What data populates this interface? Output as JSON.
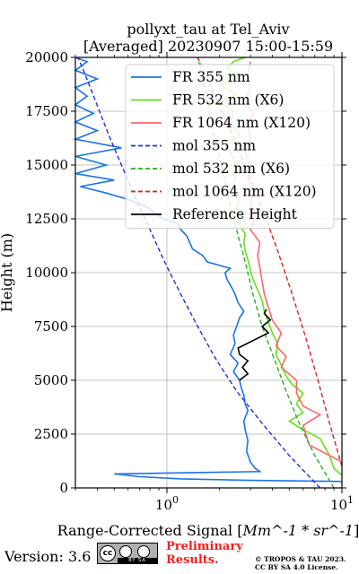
{
  "title_line1": "pollyxt_tau at Tel_Aviv",
  "title_line2": "[Averaged] 20230907 15:00-15:59",
  "footer": {
    "version": "Version: 3.6",
    "cc_badge": "cc-by-sa-badge",
    "cc_text": "BY SA",
    "preliminary_line1": "Preliminary",
    "preliminary_line2": "Results.",
    "copyright_line1": "© TROPOS & TAU 2023.",
    "copyright_line2": "CC BY SA 4.0 License.",
    "preliminary_color": "#ff1a1a"
  },
  "chart_data": {
    "type": "line",
    "title": "pollyxt_tau at Tel_Aviv [Averaged] 20230907 15:00-15:59",
    "xlabel": "Range-Corrected Signal [Mm^-1 * sr^-1]",
    "ylabel": "Height (m)",
    "xscale": "log",
    "xlim": [
      0.3,
      10
    ],
    "ylim": [
      0,
      20000
    ],
    "xticks": [
      {
        "value": 1,
        "label": "10^0"
      },
      {
        "value": 10,
        "label": "10^1"
      }
    ],
    "yticks": [
      0,
      2500,
      5000,
      7500,
      10000,
      12500,
      15000,
      17500,
      20000
    ],
    "ytick_labels": [
      "0",
      "2500",
      "5000",
      "7500",
      "10000",
      "12500",
      "15000",
      "17500",
      "20000"
    ],
    "grid": true,
    "legend_position": "top-right",
    "series": [
      {
        "name": "FR 355 nm",
        "color": "#1a73e8",
        "style": "solid",
        "points": [
          [
            10,
            300
          ],
          [
            3,
            350
          ],
          [
            1.2,
            420
          ],
          [
            0.7,
            520
          ],
          [
            0.5,
            650
          ],
          [
            3.4,
            760
          ],
          [
            3.2,
            900
          ],
          [
            3.0,
            1200
          ],
          [
            2.85,
            1700
          ],
          [
            2.9,
            2200
          ],
          [
            2.8,
            2700
          ],
          [
            2.75,
            3100
          ],
          [
            2.9,
            3600
          ],
          [
            2.8,
            3900
          ],
          [
            2.75,
            4300
          ],
          [
            2.65,
            4700
          ],
          [
            2.6,
            5000
          ],
          [
            2.4,
            5400
          ],
          [
            2.55,
            5800
          ],
          [
            2.3,
            6200
          ],
          [
            2.45,
            6700
          ],
          [
            2.4,
            7100
          ],
          [
            2.5,
            7500
          ],
          [
            2.6,
            7900
          ],
          [
            2.75,
            8200
          ],
          [
            2.55,
            8600
          ],
          [
            2.45,
            9000
          ],
          [
            2.35,
            9300
          ],
          [
            2.2,
            9700
          ],
          [
            2.15,
            10000
          ],
          [
            2.3,
            10200
          ],
          [
            1.7,
            10500
          ],
          [
            1.6,
            10800
          ],
          [
            1.4,
            11100
          ],
          [
            1.35,
            11400
          ],
          [
            1.3,
            11700
          ],
          [
            1.2,
            12000
          ],
          [
            1.15,
            12300
          ],
          [
            0.95,
            12500
          ],
          [
            0.85,
            12800
          ],
          [
            0.75,
            13100
          ],
          [
            0.6,
            13400
          ],
          [
            0.45,
            13700
          ],
          [
            0.32,
            14000
          ],
          [
            0.5,
            14300
          ],
          [
            0.3,
            14600
          ],
          [
            0.45,
            15000
          ],
          [
            0.3,
            15400
          ],
          [
            0.55,
            15800
          ],
          [
            0.3,
            16200
          ],
          [
            0.4,
            16600
          ],
          [
            0.3,
            17000
          ],
          [
            0.38,
            17400
          ],
          [
            0.3,
            17800
          ],
          [
            0.35,
            18200
          ],
          [
            0.3,
            18600
          ],
          [
            0.4,
            19000
          ],
          [
            0.3,
            19400
          ],
          [
            0.35,
            19800
          ],
          [
            0.3,
            20000
          ]
        ]
      },
      {
        "name": "FR 532 nm (X6)",
        "color": "#66e01a",
        "style": "solid",
        "points": [
          [
            10,
            600
          ],
          [
            9.0,
            900
          ],
          [
            8.5,
            1500
          ],
          [
            7.5,
            2300
          ],
          [
            6.0,
            2700
          ],
          [
            5.0,
            3100
          ],
          [
            6.0,
            3500
          ],
          [
            5.5,
            3900
          ],
          [
            6.0,
            4400
          ],
          [
            5.2,
            4800
          ],
          [
            4.8,
            5200
          ],
          [
            4.5,
            5700
          ],
          [
            4.2,
            6200
          ],
          [
            4.3,
            6700
          ],
          [
            4.0,
            7200
          ],
          [
            3.8,
            7700
          ],
          [
            3.6,
            8200
          ],
          [
            3.5,
            8700
          ],
          [
            3.3,
            9200
          ],
          [
            3.1,
            9700
          ],
          [
            3.0,
            10100
          ],
          [
            2.9,
            10600
          ],
          [
            2.8,
            11000
          ],
          [
            2.75,
            11400
          ],
          [
            2.8,
            11800
          ],
          [
            2.6,
            12200
          ],
          [
            2.7,
            12600
          ],
          [
            2.5,
            13000
          ],
          [
            2.6,
            13500
          ],
          [
            2.4,
            14100
          ],
          [
            2.5,
            14700
          ],
          [
            2.4,
            15300
          ],
          [
            2.2,
            15900
          ],
          [
            2.6,
            16400
          ],
          [
            2.3,
            17000
          ],
          [
            2.4,
            17500
          ],
          [
            2.0,
            17900
          ],
          [
            2.5,
            18300
          ],
          [
            2.0,
            18700
          ],
          [
            2.6,
            19100
          ],
          [
            2.2,
            19500
          ],
          [
            2.4,
            19800
          ],
          [
            2.8,
            20000
          ]
        ]
      },
      {
        "name": "FR 1064 nm (X120)",
        "color": "#ff6666",
        "style": "solid",
        "points": [
          [
            10,
            1200
          ],
          [
            6.5,
            2000
          ],
          [
            6.0,
            2900
          ],
          [
            7.5,
            3400
          ],
          [
            6.0,
            3800
          ],
          [
            5.5,
            4400
          ],
          [
            5.5,
            5000
          ],
          [
            4.5,
            5600
          ],
          [
            4.8,
            6100
          ],
          [
            4.2,
            6600
          ],
          [
            4.5,
            7200
          ],
          [
            4.0,
            7800
          ],
          [
            3.8,
            8400
          ],
          [
            3.6,
            9000
          ],
          [
            3.5,
            9600
          ],
          [
            3.4,
            10200
          ],
          [
            3.3,
            10800
          ],
          [
            3.4,
            11400
          ],
          [
            3.0,
            12000
          ],
          [
            3.2,
            12600
          ],
          [
            3.0,
            13200
          ],
          [
            3.1,
            13800
          ],
          [
            2.9,
            14400
          ],
          [
            3.0,
            15000
          ],
          [
            2.8,
            15600
          ],
          [
            3.0,
            16200
          ],
          [
            2.9,
            16800
          ],
          [
            3.1,
            17400
          ],
          [
            2.8,
            18000
          ],
          [
            3.0,
            18600
          ],
          [
            2.9,
            19200
          ],
          [
            3.0,
            19800
          ]
        ]
      },
      {
        "name": "mol 355 nm",
        "color": "#1f2ee0",
        "style": "dashed",
        "points": [
          [
            7.5,
            0
          ],
          [
            5.0,
            1500
          ],
          [
            3.5,
            3000
          ],
          [
            2.5,
            4500
          ],
          [
            1.9,
            6000
          ],
          [
            1.5,
            7500
          ],
          [
            1.2,
            9000
          ],
          [
            0.97,
            10500
          ],
          [
            0.8,
            12000
          ],
          [
            0.66,
            13500
          ],
          [
            0.55,
            15000
          ],
          [
            0.46,
            16500
          ],
          [
            0.39,
            18000
          ],
          [
            0.33,
            19500
          ],
          [
            0.31,
            20000
          ]
        ]
      },
      {
        "name": "mol 532 nm (X6)",
        "color": "#22b022",
        "style": "dashed",
        "points": [
          [
            9.0,
            0
          ],
          [
            7.0,
            1500
          ],
          [
            5.7,
            3000
          ],
          [
            4.8,
            4500
          ],
          [
            4.1,
            6000
          ],
          [
            3.5,
            7500
          ],
          [
            3.1,
            9000
          ],
          [
            2.8,
            10500
          ],
          [
            2.5,
            12000
          ],
          [
            2.25,
            13500
          ],
          [
            2.05,
            15000
          ],
          [
            1.85,
            16500
          ],
          [
            1.7,
            18000
          ],
          [
            1.55,
            19500
          ],
          [
            1.5,
            20000
          ]
        ]
      },
      {
        "name": "mol 1064 nm (X120)",
        "color": "#e01f1f",
        "style": "dashed",
        "points": [
          [
            10.0,
            1000
          ],
          [
            8.5,
            3000
          ],
          [
            7.3,
            5000
          ],
          [
            6.2,
            7000
          ],
          [
            5.2,
            9000
          ],
          [
            4.3,
            11000
          ],
          [
            3.5,
            13000
          ],
          [
            2.8,
            15000
          ],
          [
            2.2,
            17000
          ],
          [
            1.7,
            19000
          ],
          [
            1.5,
            20000
          ]
        ]
      },
      {
        "name": "Reference Height",
        "color": "#000000",
        "style": "solid",
        "points": [
          [
            2.6,
            5000
          ],
          [
            2.9,
            5300
          ],
          [
            2.7,
            5600
          ],
          [
            2.9,
            5900
          ],
          [
            2.6,
            6200
          ],
          [
            2.55,
            6500
          ],
          [
            3.8,
            7200
          ],
          [
            3.5,
            7500
          ],
          [
            3.9,
            7800
          ],
          [
            3.6,
            8100
          ],
          [
            3.7,
            8300
          ]
        ]
      }
    ]
  }
}
